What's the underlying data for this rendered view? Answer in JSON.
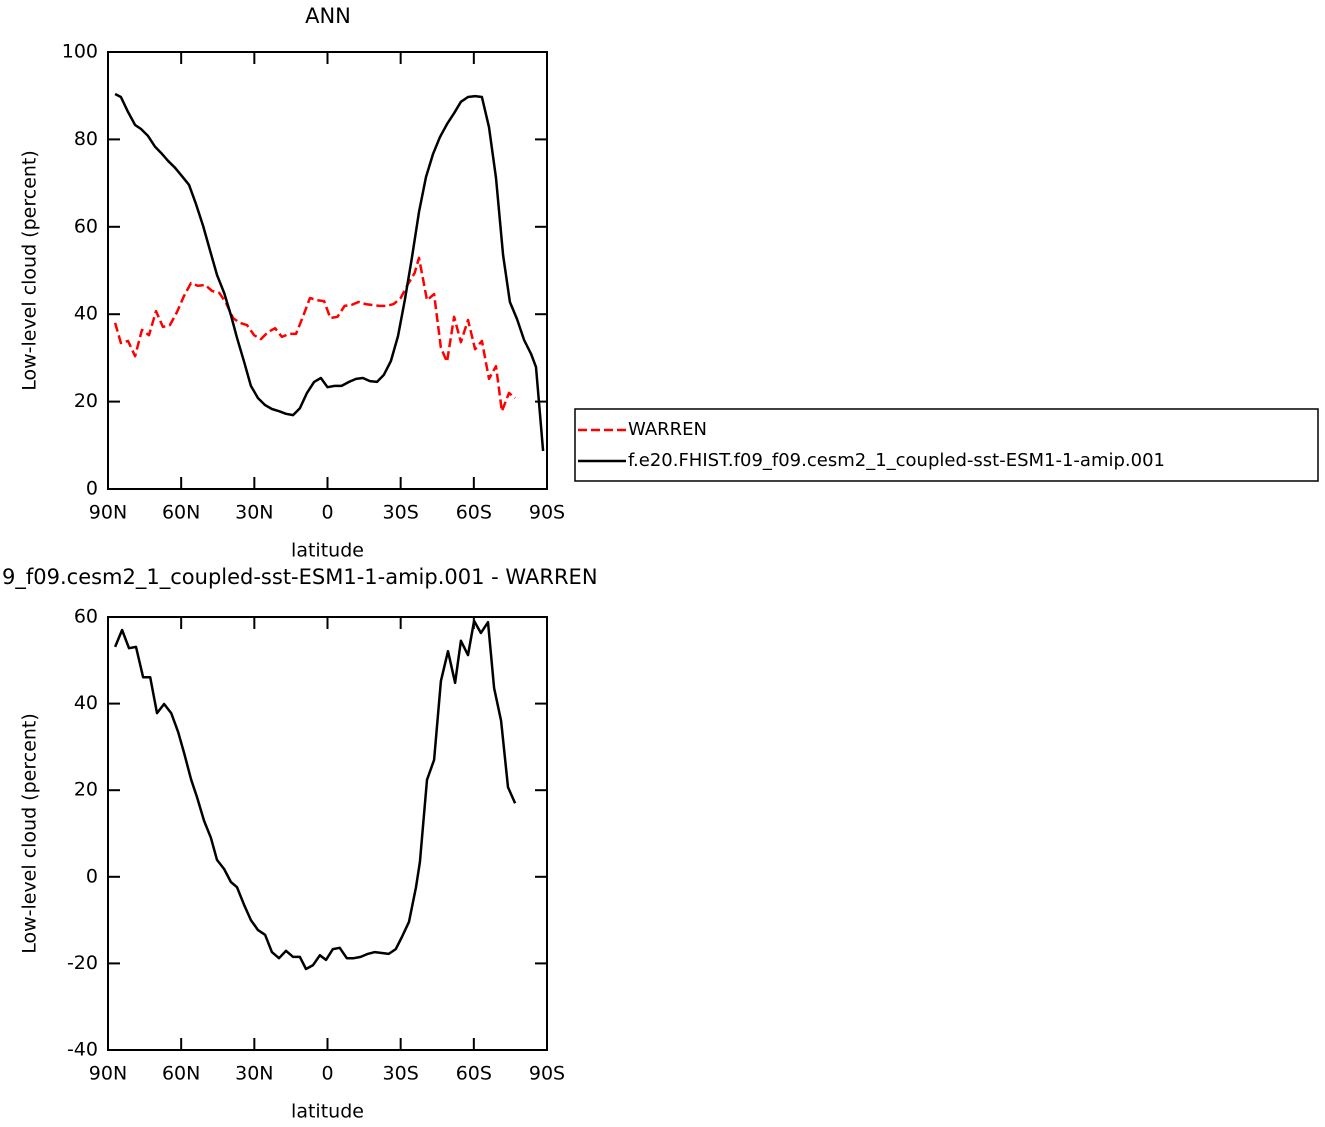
{
  "chart_data": [
    {
      "type": "line",
      "title": "ANN",
      "x_label": "latitude",
      "y_label": "Low-level cloud (percent)",
      "xlim": [
        90,
        -90
      ],
      "ylim": [
        0,
        100
      ],
      "xticks": [
        {
          "value": 90,
          "label": "90N"
        },
        {
          "value": 60,
          "label": "60N"
        },
        {
          "value": 30,
          "label": "30N"
        },
        0,
        {
          "value": -30,
          "label": "30S"
        },
        {
          "value": -60,
          "label": "60S"
        },
        {
          "value": -90,
          "label": "90S"
        }
      ],
      "yticks": [
        0,
        20,
        40,
        60,
        80,
        100
      ],
      "legend": "right",
      "series": [
        {
          "name": "WARREN",
          "color": "#ff0000",
          "line_style": "dashed",
          "x": [
            87.1,
            84.7,
            81.8,
            78.9,
            76.1,
            73.2,
            70.3,
            67.5,
            64.6,
            61.7,
            58.8,
            56.0,
            53.1,
            50.2,
            47.3,
            44.4,
            41.6,
            38.7,
            35.9,
            33.0,
            30.1,
            27.3,
            24.4,
            21.5,
            18.7,
            15.8,
            12.9,
            10.1,
            7.2,
            4.3,
            1.4,
            -1.2,
            -4.1,
            -7.0,
            -9.8,
            -12.7,
            -15.6,
            -18.5,
            -21.3,
            -24.2,
            -27.1,
            -30.0,
            -32.8,
            -35.7,
            -37.5,
            -40.8,
            -43.7,
            -46.5,
            -49.0,
            -51.9,
            -54.7,
            -57.6,
            -60.5,
            -63.3,
            -66.2,
            -69.1,
            -71.5,
            -74.4,
            -76.9
          ],
          "values": [
            38.0,
            33.4,
            33.9,
            30.4,
            36.4,
            35.2,
            40.7,
            37.1,
            37.5,
            40.5,
            44.2,
            47.1,
            46.5,
            46.7,
            45.3,
            44.9,
            42.6,
            39.1,
            38.0,
            37.5,
            35.2,
            34.3,
            35.9,
            36.8,
            34.8,
            35.5,
            35.5,
            39.4,
            43.7,
            43.2,
            43.0,
            39.1,
            39.4,
            41.9,
            42.1,
            42.8,
            42.3,
            42.1,
            41.9,
            41.9,
            42.3,
            43.7,
            46.7,
            49.4,
            52.9,
            43.2,
            44.6,
            32.3,
            29.1,
            39.4,
            33.6,
            38.7,
            32.0,
            33.9,
            25.2,
            28.1,
            17.8,
            22.0,
            20.8
          ]
        },
        {
          "name": "f.e20.FHIST.f09_f09.cesm2_1_coupled-sst-ESM1-1-amip.001",
          "color": "#000000",
          "line_style": "solid",
          "x": [
            87.1,
            84.7,
            81.8,
            78.9,
            76.5,
            73.6,
            70.7,
            67.9,
            65.4,
            62.5,
            59.7,
            56.8,
            53.9,
            51.0,
            48.2,
            45.3,
            42.4,
            39.6,
            37.1,
            34.2,
            31.4,
            28.5,
            25.6,
            22.8,
            19.9,
            17.0,
            14.1,
            11.3,
            8.4,
            5.5,
            2.7,
            0,
            -2.9,
            -5.8,
            -8.8,
            -11.7,
            -14.5,
            -17.4,
            -20.3,
            -23.1,
            -26.0,
            -28.9,
            -31.7,
            -34.6,
            -37.5,
            -40.4,
            -43.3,
            -46.1,
            -49.0,
            -51.9,
            -54.7,
            -57.6,
            -60.5,
            -63.3,
            -66.2,
            -69.1,
            -72.0,
            -74.8,
            -77.7,
            -80.6,
            -83.5,
            -85.5,
            -88.4
          ],
          "values": [
            90.4,
            89.7,
            86.3,
            83.3,
            82.4,
            80.8,
            78.3,
            76.7,
            75.1,
            73.5,
            71.6,
            69.6,
            65.2,
            60.2,
            54.7,
            49.0,
            44.9,
            39.8,
            34.6,
            29.1,
            23.6,
            20.8,
            19.2,
            18.3,
            17.8,
            17.2,
            16.9,
            18.5,
            22.0,
            24.5,
            25.4,
            23.3,
            23.6,
            23.6,
            24.5,
            25.2,
            25.4,
            24.7,
            24.5,
            26.1,
            29.3,
            35.0,
            43.2,
            52.9,
            63.4,
            71.4,
            76.7,
            80.5,
            83.5,
            86.0,
            88.6,
            89.7,
            89.9,
            89.7,
            82.8,
            71.2,
            53.5,
            42.8,
            38.9,
            34.1,
            30.9,
            27.9,
            8.7
          ]
        }
      ]
    },
    {
      "type": "line",
      "title": "9_f09.cesm2_1_coupled-sst-ESM1-1-amip.001 - WARREN",
      "x_label": "latitude",
      "y_label": "Low-level cloud (percent)",
      "xlim": [
        90,
        -90
      ],
      "ylim": [
        -40,
        60
      ],
      "xticks": [
        {
          "value": 90,
          "label": "90N"
        },
        {
          "value": 60,
          "label": "60N"
        },
        {
          "value": 30,
          "label": "30N"
        },
        0,
        {
          "value": -30,
          "label": "30S"
        },
        {
          "value": -60,
          "label": "60S"
        },
        {
          "value": -90,
          "label": "90S"
        }
      ],
      "yticks": [
        -40,
        -20,
        0,
        20,
        40,
        60
      ],
      "series": [
        {
          "color": "#000000",
          "line_style": "solid",
          "x": [
            87.1,
            84.2,
            81.4,
            78.5,
            75.6,
            72.7,
            69.9,
            67.0,
            64.1,
            61.2,
            58.8,
            55.9,
            53.5,
            50.6,
            47.8,
            45.3,
            42.4,
            39.6,
            37.1,
            34.2,
            31.4,
            28.5,
            25.6,
            22.8,
            19.9,
            17.0,
            14.1,
            11.3,
            8.8,
            5.9,
            3.1,
            0.6,
            -2.2,
            -5.0,
            -7.9,
            -10.8,
            -13.6,
            -16.5,
            -19.4,
            -22.3,
            -25.1,
            -28.0,
            -30.5,
            -33.4,
            -36.3,
            -37.9,
            -40.8,
            -43.7,
            -46.5,
            -49.4,
            -52.3,
            -54.7,
            -57.6,
            -60.1,
            -62.9,
            -65.8,
            -68.3,
            -71.2,
            -74.0,
            -76.9
          ],
          "values": [
            53.1,
            57.0,
            52.8,
            53.1,
            46.1,
            46.1,
            37.8,
            39.9,
            37.8,
            33.4,
            28.6,
            22.4,
            18.4,
            12.9,
            9.0,
            3.9,
            1.8,
            -1.2,
            -2.4,
            -6.5,
            -10.0,
            -12.3,
            -13.4,
            -17.4,
            -18.8,
            -17.1,
            -18.5,
            -18.5,
            -21.3,
            -20.4,
            -18.1,
            -19.2,
            -16.7,
            -16.4,
            -18.8,
            -18.8,
            -18.5,
            -17.8,
            -17.4,
            -17.6,
            -17.8,
            -16.7,
            -13.9,
            -10.4,
            -2.4,
            3.4,
            22.4,
            27.0,
            45.2,
            52.1,
            44.8,
            54.5,
            51.2,
            59.1,
            56.3,
            58.8,
            43.6,
            36.0,
            20.7,
            17.0
          ]
        }
      ]
    }
  ]
}
